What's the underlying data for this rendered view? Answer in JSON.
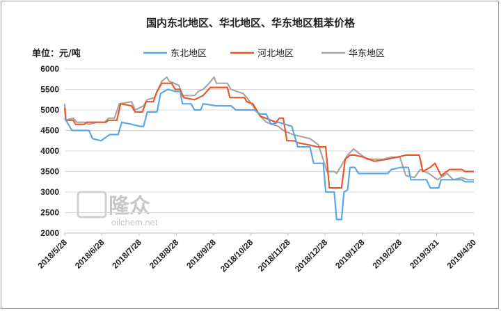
{
  "chart_data": {
    "type": "line",
    "title": "国内东北地区、华北地区、华东地区粗苯价格",
    "unit_label": "单位：元/吨",
    "ylim": [
      2000,
      6000
    ],
    "yticks": [
      "6000",
      "5500",
      "5000",
      "4500",
      "4000",
      "3500",
      "3000",
      "2500",
      "2000"
    ],
    "xtick_labels": [
      "2018/5/28",
      "2018/6/28",
      "2018/7/28",
      "2018/8/28",
      "2018/9/28",
      "2018/10/28",
      "2018/11/28",
      "2018/12/28",
      "2019/1/28",
      "2019/2/28",
      "2019/3/31",
      "2019/4/30"
    ],
    "x_start": "2018-05-28",
    "x_end": "2019-04-30",
    "grid": "horizontal",
    "legend_position": "top",
    "watermark": {
      "cn": "隆众",
      "en": "oilchem.net"
    },
    "series": [
      {
        "name": "东北地区",
        "color": "#5aa7e6",
        "points": [
          [
            "2018-05-28",
            4800
          ],
          [
            "2018-06-03",
            4500
          ],
          [
            "2018-06-17",
            4500
          ],
          [
            "2018-06-20",
            4300
          ],
          [
            "2018-06-27",
            4250
          ],
          [
            "2018-07-04",
            4400
          ],
          [
            "2018-07-11",
            4400
          ],
          [
            "2018-07-14",
            4700
          ],
          [
            "2018-07-22",
            4650
          ],
          [
            "2018-07-29",
            4600
          ],
          [
            "2018-08-01",
            4600
          ],
          [
            "2018-08-04",
            4950
          ],
          [
            "2018-08-12",
            4950
          ],
          [
            "2018-08-15",
            5400
          ],
          [
            "2018-08-21",
            5500
          ],
          [
            "2018-08-27",
            5450
          ],
          [
            "2018-08-31",
            5450
          ],
          [
            "2018-09-02",
            5150
          ],
          [
            "2018-09-09",
            5150
          ],
          [
            "2018-09-12",
            5000
          ],
          [
            "2018-09-17",
            5000
          ],
          [
            "2018-09-19",
            5150
          ],
          [
            "2018-09-30",
            5100
          ],
          [
            "2018-10-12",
            5100
          ],
          [
            "2018-10-16",
            5000
          ],
          [
            "2018-10-31",
            5000
          ],
          [
            "2018-11-05",
            4900
          ],
          [
            "2018-11-10",
            4900
          ],
          [
            "2018-11-14",
            4650
          ],
          [
            "2018-11-20",
            4700
          ],
          [
            "2018-12-01",
            4600
          ],
          [
            "2018-12-06",
            4100
          ],
          [
            "2018-12-16",
            4100
          ],
          [
            "2018-12-19",
            3700
          ],
          [
            "2018-12-27",
            3700
          ],
          [
            "2018-12-29",
            3000
          ],
          [
            "2019-01-05",
            3000
          ],
          [
            "2019-01-07",
            2330
          ],
          [
            "2019-01-11",
            2330
          ],
          [
            "2019-01-13",
            3000
          ],
          [
            "2019-01-16",
            3050
          ],
          [
            "2019-01-18",
            3600
          ],
          [
            "2019-01-22",
            3600
          ],
          [
            "2019-01-25",
            3450
          ],
          [
            "2019-02-18",
            3450
          ],
          [
            "2019-02-21",
            3550
          ],
          [
            "2019-03-01",
            3600
          ],
          [
            "2019-03-07",
            3600
          ],
          [
            "2019-03-09",
            3300
          ],
          [
            "2019-03-22",
            3300
          ],
          [
            "2019-03-25",
            3100
          ],
          [
            "2019-04-01",
            3100
          ],
          [
            "2019-04-03",
            3300
          ],
          [
            "2019-04-20",
            3300
          ],
          [
            "2019-04-23",
            3250
          ],
          [
            "2019-04-30",
            3250
          ]
        ]
      },
      {
        "name": "河北地区",
        "color": "#e8582b",
        "points": [
          [
            "2018-05-28",
            5050
          ],
          [
            "2018-05-29",
            4750
          ],
          [
            "2018-06-04",
            4750
          ],
          [
            "2018-06-06",
            4650
          ],
          [
            "2018-06-13",
            4650
          ],
          [
            "2018-06-15",
            4700
          ],
          [
            "2018-07-01",
            4700
          ],
          [
            "2018-07-03",
            4750
          ],
          [
            "2018-07-10",
            4750
          ],
          [
            "2018-07-13",
            5150
          ],
          [
            "2018-07-22",
            5100
          ],
          [
            "2018-07-25",
            4950
          ],
          [
            "2018-07-31",
            4950
          ],
          [
            "2018-08-03",
            5200
          ],
          [
            "2018-08-09",
            5200
          ],
          [
            "2018-08-12",
            5450
          ],
          [
            "2018-08-16",
            5650
          ],
          [
            "2018-08-24",
            5650
          ],
          [
            "2018-08-27",
            5500
          ],
          [
            "2018-08-31",
            5500
          ],
          [
            "2018-09-03",
            5300
          ],
          [
            "2018-09-12",
            5250
          ],
          [
            "2018-09-19",
            5350
          ],
          [
            "2018-09-25",
            5550
          ],
          [
            "2018-10-09",
            5550
          ],
          [
            "2018-10-11",
            5300
          ],
          [
            "2018-10-23",
            5300
          ],
          [
            "2018-10-25",
            5200
          ],
          [
            "2018-10-30",
            5150
          ],
          [
            "2018-11-05",
            4850
          ],
          [
            "2018-11-18",
            4700
          ],
          [
            "2018-11-21",
            4800
          ],
          [
            "2018-11-24",
            4800
          ],
          [
            "2018-11-27",
            4250
          ],
          [
            "2018-12-03",
            4250
          ],
          [
            "2018-12-06",
            4200
          ],
          [
            "2018-12-15",
            4150
          ],
          [
            "2018-12-22",
            4100
          ],
          [
            "2018-12-29",
            4100
          ],
          [
            "2019-01-01",
            3100
          ],
          [
            "2019-01-11",
            3100
          ],
          [
            "2019-01-14",
            3800
          ],
          [
            "2019-01-18",
            3900
          ],
          [
            "2019-01-22",
            3900
          ],
          [
            "2019-01-29",
            3850
          ],
          [
            "2019-02-07",
            3750
          ],
          [
            "2019-02-18",
            3800
          ],
          [
            "2019-02-26",
            3850
          ],
          [
            "2019-03-05",
            3900
          ],
          [
            "2019-03-16",
            3900
          ],
          [
            "2019-03-19",
            3500
          ],
          [
            "2019-03-25",
            3600
          ],
          [
            "2019-03-29",
            3700
          ],
          [
            "2019-04-03",
            3400
          ],
          [
            "2019-04-10",
            3550
          ],
          [
            "2019-04-20",
            3550
          ],
          [
            "2019-04-23",
            3500
          ],
          [
            "2019-04-30",
            3500
          ]
        ]
      },
      {
        "name": "华东地区",
        "color": "#a6a6a6",
        "points": [
          [
            "2018-05-28",
            5150
          ],
          [
            "2018-05-29",
            4750
          ],
          [
            "2018-06-04",
            4800
          ],
          [
            "2018-06-07",
            4700
          ],
          [
            "2018-06-13",
            4700
          ],
          [
            "2018-06-17",
            4650
          ],
          [
            "2018-06-24",
            4700
          ],
          [
            "2018-06-30",
            4700
          ],
          [
            "2018-07-03",
            4800
          ],
          [
            "2018-07-08",
            4800
          ],
          [
            "2018-07-12",
            5150
          ],
          [
            "2018-07-22",
            5200
          ],
          [
            "2018-07-25",
            5000
          ],
          [
            "2018-08-01",
            5100
          ],
          [
            "2018-08-04",
            5250
          ],
          [
            "2018-08-10",
            5300
          ],
          [
            "2018-08-13",
            5500
          ],
          [
            "2018-08-16",
            5700
          ],
          [
            "2018-08-20",
            5800
          ],
          [
            "2018-08-22",
            5700
          ],
          [
            "2018-08-30",
            5600
          ],
          [
            "2018-09-02",
            5350
          ],
          [
            "2018-09-12",
            5350
          ],
          [
            "2018-09-15",
            5450
          ],
          [
            "2018-09-19",
            5500
          ],
          [
            "2018-09-24",
            5650
          ],
          [
            "2018-09-28",
            5800
          ],
          [
            "2018-09-30",
            5650
          ],
          [
            "2018-10-09",
            5650
          ],
          [
            "2018-10-12",
            5500
          ],
          [
            "2018-10-22",
            5400
          ],
          [
            "2018-10-25",
            5300
          ],
          [
            "2018-10-30",
            5100
          ],
          [
            "2018-11-05",
            4850
          ],
          [
            "2018-11-10",
            4700
          ],
          [
            "2018-11-20",
            4600
          ],
          [
            "2018-11-24",
            4500
          ],
          [
            "2018-12-02",
            4400
          ],
          [
            "2018-12-09",
            4350
          ],
          [
            "2018-12-16",
            4300
          ],
          [
            "2018-12-23",
            4150
          ],
          [
            "2018-12-30",
            3500
          ],
          [
            "2019-01-05",
            3500
          ],
          [
            "2019-01-07",
            3450
          ],
          [
            "2019-01-11",
            3650
          ],
          [
            "2019-01-16",
            3900
          ],
          [
            "2019-01-21",
            4050
          ],
          [
            "2019-01-25",
            3950
          ],
          [
            "2019-02-01",
            3800
          ],
          [
            "2019-02-15",
            3800
          ],
          [
            "2019-02-21",
            3850
          ],
          [
            "2019-02-28",
            3850
          ],
          [
            "2019-03-05",
            3400
          ],
          [
            "2019-03-12",
            3350
          ],
          [
            "2019-03-17",
            3550
          ],
          [
            "2019-03-24",
            3450
          ],
          [
            "2019-03-31",
            3300
          ],
          [
            "2019-04-08",
            3450
          ],
          [
            "2019-04-13",
            3300
          ],
          [
            "2019-04-20",
            3350
          ],
          [
            "2019-04-25",
            3300
          ],
          [
            "2019-04-30",
            3300
          ]
        ]
      }
    ]
  }
}
